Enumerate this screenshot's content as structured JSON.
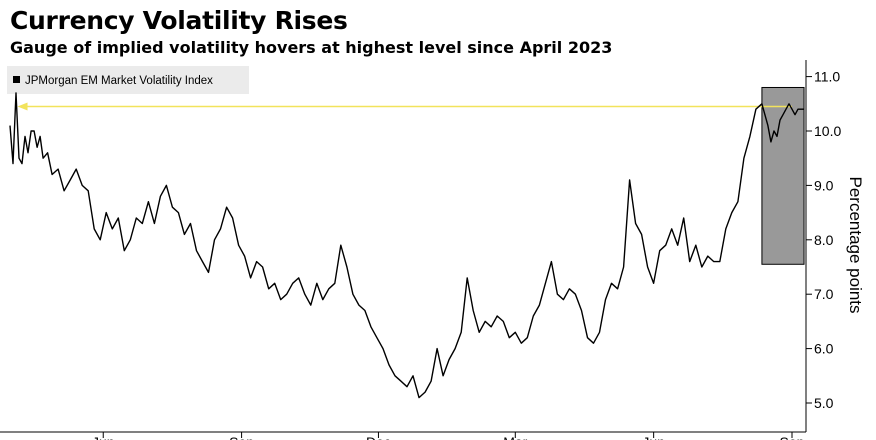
{
  "header": {
    "title": "Currency Volatility Rises",
    "subtitle": "Gauge of implied volatility hovers at highest level since April 2023"
  },
  "chart_data": {
    "type": "line",
    "ylabel": "Percentage points",
    "ylim": [
      4.85,
      11.25
    ],
    "yticks": [
      5.0,
      6.0,
      7.0,
      8.0,
      9.0,
      10.0,
      11.0
    ],
    "ytick_labels": [
      "5.0",
      "6.0",
      "7.0",
      "8.0",
      "9.0",
      "10.0",
      "11.0"
    ],
    "xlim": [
      0,
      520
    ],
    "xticks": [
      {
        "label": "Jun",
        "x": 62
      },
      {
        "label": "Sep",
        "x": 154
      },
      {
        "label": "Dec",
        "x": 245
      },
      {
        "label": "Mar",
        "x": 336
      },
      {
        "label": "Jun",
        "x": 428
      },
      {
        "label": "Sep",
        "x": 520
      }
    ],
    "legend_position": "top-left",
    "series": [
      {
        "name": "JPMorgan EM Market Volatility Index",
        "color": "#000000",
        "x": [
          0,
          2,
          4,
          6,
          8,
          10,
          12,
          14,
          16,
          18,
          20,
          22,
          25,
          28,
          32,
          36,
          40,
          44,
          48,
          52,
          56,
          60,
          64,
          68,
          72,
          76,
          80,
          84,
          88,
          92,
          96,
          100,
          104,
          108,
          112,
          116,
          120,
          124,
          128,
          132,
          136,
          140,
          144,
          148,
          152,
          156,
          160,
          164,
          168,
          172,
          176,
          180,
          184,
          188,
          192,
          196,
          200,
          204,
          208,
          212,
          216,
          220,
          224,
          228,
          232,
          236,
          240,
          244,
          248,
          252,
          256,
          260,
          264,
          268,
          272,
          276,
          280,
          284,
          288,
          292,
          296,
          300,
          304,
          308,
          312,
          316,
          320,
          324,
          328,
          332,
          336,
          340,
          344,
          348,
          352,
          356,
          360,
          364,
          368,
          372,
          376,
          380,
          384,
          388,
          392,
          396,
          400,
          404,
          408,
          412,
          416,
          420,
          424,
          428,
          432,
          436,
          440,
          444,
          448,
          452,
          456,
          460,
          464,
          468,
          472,
          476,
          480,
          484,
          488,
          492,
          496,
          500,
          502,
          504,
          506,
          508,
          510,
          512,
          514,
          516,
          518,
          520,
          522,
          524,
          526,
          528
        ],
        "values": [
          10.1,
          9.4,
          10.7,
          9.5,
          9.4,
          9.9,
          9.6,
          10.0,
          10.0,
          9.7,
          9.9,
          9.5,
          9.6,
          9.2,
          9.3,
          8.9,
          9.1,
          9.3,
          9.0,
          8.9,
          8.2,
          8.0,
          8.5,
          8.2,
          8.4,
          7.8,
          8.0,
          8.4,
          8.3,
          8.7,
          8.3,
          8.8,
          9.0,
          8.6,
          8.5,
          8.1,
          8.3,
          7.8,
          7.6,
          7.4,
          8.0,
          8.2,
          8.6,
          8.4,
          7.9,
          7.7,
          7.3,
          7.6,
          7.5,
          7.1,
          7.2,
          6.9,
          7.0,
          7.2,
          7.3,
          7.0,
          6.8,
          7.2,
          6.9,
          7.1,
          7.2,
          7.9,
          7.5,
          7.0,
          6.8,
          6.7,
          6.4,
          6.2,
          6.0,
          5.7,
          5.5,
          5.4,
          5.3,
          5.5,
          5.1,
          5.2,
          5.4,
          6.0,
          5.5,
          5.8,
          6.0,
          6.3,
          7.3,
          6.7,
          6.3,
          6.5,
          6.4,
          6.6,
          6.5,
          6.2,
          6.3,
          6.1,
          6.2,
          6.6,
          6.8,
          7.2,
          7.6,
          7.0,
          6.9,
          7.1,
          7.0,
          6.7,
          6.2,
          6.1,
          6.3,
          6.9,
          7.2,
          7.1,
          7.5,
          9.1,
          8.3,
          8.1,
          7.5,
          7.2,
          7.8,
          7.9,
          8.2,
          7.9,
          8.4,
          7.6,
          7.9,
          7.5,
          7.7,
          7.6,
          7.6,
          8.2,
          8.5,
          8.7,
          9.5,
          9.9,
          10.4,
          10.5,
          10.3,
          10.1,
          9.8,
          10.0,
          9.9,
          10.2,
          10.3,
          10.4,
          10.5,
          10.4,
          10.3,
          10.4,
          10.4,
          10.4
        ]
      }
    ],
    "annotations": [
      {
        "type": "highlight-box",
        "x_range": [
          500,
          528
        ],
        "y_range": [
          7.55,
          10.8
        ],
        "color": "#999999"
      },
      {
        "type": "arrow",
        "from": {
          "x": 520,
          "y": 10.45
        },
        "to": {
          "x": 5,
          "y": 10.45
        },
        "color": "#f2e35c"
      }
    ]
  }
}
